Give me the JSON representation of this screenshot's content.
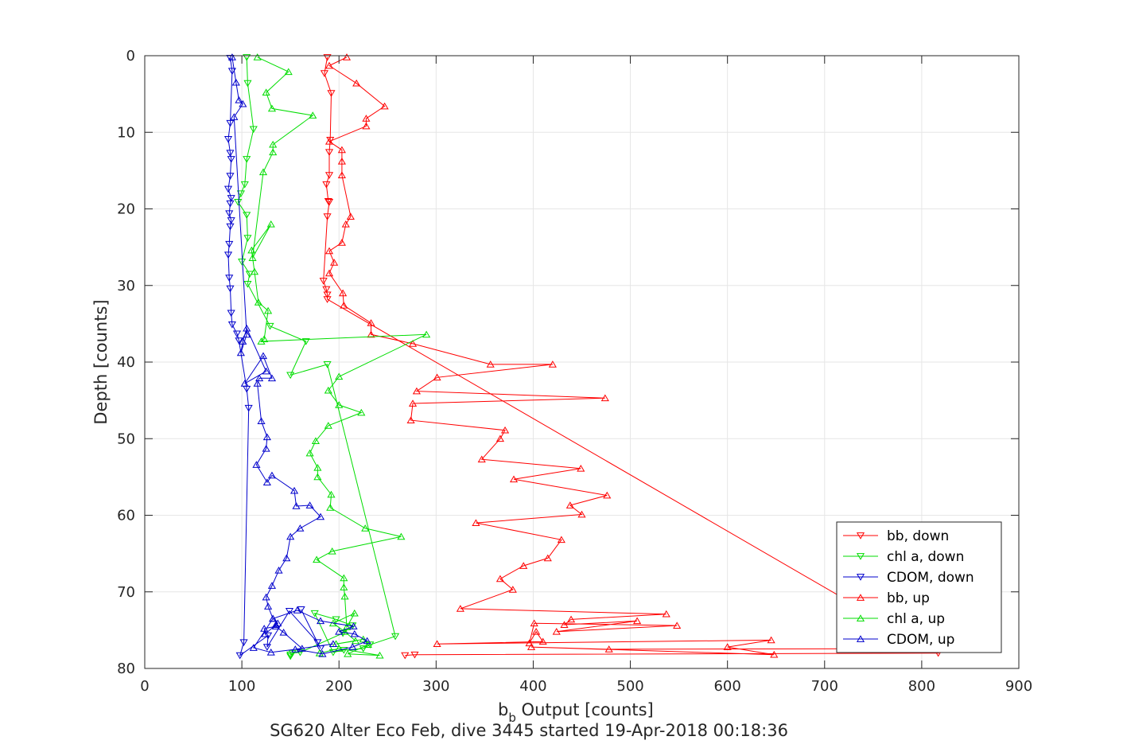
{
  "chart_data": {
    "type": "line",
    "xlabel_main": "b",
    "xlabel_sub": "b",
    "xlabel_rest": " Output [counts]",
    "ylabel": "Depth [counts]",
    "caption": "SG620 Alter Eco Feb, dive 3445 started 19-Apr-2018 00:18:36",
    "xlim": [
      0,
      900
    ],
    "ylim": [
      0,
      80
    ],
    "y_reversed": true,
    "grid": true,
    "legend_position": "bottom-right",
    "xticks": [
      "0",
      "100",
      "200",
      "300",
      "400",
      "500",
      "600",
      "700",
      "800",
      "900"
    ],
    "yticks": [
      "0",
      "10",
      "20",
      "30",
      "40",
      "50",
      "60",
      "70",
      "80"
    ],
    "series": [
      {
        "name": "bb, down",
        "color": "#ff0000",
        "marker": "triangle-down",
        "x": [
          188,
          185,
          192,
          191,
          190,
          190,
          187,
          189,
          190,
          188,
          184,
          187,
          188,
          188,
          817,
          278,
          268
        ],
        "y": [
          0.2,
          2.3,
          4.9,
          11.0,
          12.6,
          15.6,
          16.8,
          19.0,
          19.1,
          21.0,
          29.4,
          30.5,
          31.2,
          31.8,
          78.0,
          78.2,
          78.3
        ]
      },
      {
        "name": "chl a, down",
        "color": "#00dd00",
        "marker": "triangle-down",
        "x": [
          105,
          106,
          112,
          105,
          103,
          99,
          96,
          105,
          106,
          100,
          108,
          106,
          129,
          166,
          150,
          188,
          258,
          232,
          225,
          205,
          194,
          175,
          197,
          214,
          204,
          160,
          152,
          150,
          150
        ],
        "y": [
          0.2,
          3.6,
          9.6,
          13.5,
          16.8,
          18.0,
          19.1,
          20.8,
          23.8,
          26.9,
          28.5,
          29.8,
          35.3,
          37.3,
          41.7,
          40.3,
          75.8,
          76.9,
          77.4,
          77.6,
          77.9,
          72.8,
          73.6,
          74.4,
          75.4,
          77.9,
          78.0,
          78.2,
          78.4
        ]
      },
      {
        "name": "CDOM, down",
        "color": "#0000cc",
        "marker": "triangle-down",
        "x": [
          88,
          90,
          88,
          86,
          88,
          89,
          88,
          86,
          89,
          88,
          87,
          89,
          88,
          87,
          86,
          87,
          88,
          89,
          90,
          95,
          97,
          105,
          107,
          102,
          98,
          127,
          126,
          149,
          178,
          181,
          161
        ],
        "y": [
          0.3,
          2.0,
          8.8,
          10.9,
          12.7,
          13.5,
          15.7,
          17.4,
          18.6,
          19.3,
          20.6,
          21.5,
          22.3,
          24.6,
          26.0,
          29.0,
          30.4,
          33.6,
          35.1,
          36.3,
          37.2,
          43.5,
          46.0,
          76.6,
          78.3,
          75.7,
          77.2,
          72.5,
          76.6,
          77.4,
          72.3
        ]
      },
      {
        "name": "bb, up",
        "color": "#ff0000",
        "marker": "triangle-up",
        "x": [
          208,
          190,
          218,
          247,
          228,
          228,
          190,
          203,
          203,
          203,
          212,
          207,
          203,
          190,
          195,
          190,
          204,
          205,
          233,
          233,
          276,
          356,
          420,
          301,
          280,
          474,
          276,
          274,
          371,
          366,
          347,
          449,
          380,
          476,
          438,
          450,
          341,
          429,
          415,
          390,
          366,
          379,
          325,
          537,
          439,
          432,
          507,
          424,
          548,
          401,
          396,
          403,
          410,
          301,
          645,
          600,
          648,
          398,
          478,
          819
        ],
        "y": [
          0.2,
          1.3,
          3.6,
          6.6,
          8.2,
          9.2,
          11.2,
          12.3,
          13.8,
          15.6,
          21.0,
          22.0,
          24.4,
          25.5,
          27.0,
          28.4,
          31.0,
          32.6,
          34.9,
          36.4,
          37.6,
          40.3,
          40.3,
          42.0,
          43.8,
          44.7,
          45.4,
          47.6,
          48.9,
          50.0,
          52.7,
          53.9,
          55.3,
          57.4,
          58.7,
          59.9,
          61.0,
          63.2,
          65.6,
          66.6,
          68.3,
          69.7,
          72.2,
          72.9,
          73.6,
          74.3,
          73.8,
          75.2,
          74.4,
          74.1,
          76.7,
          75.2,
          76.5,
          76.8,
          76.3,
          77.2,
          78.2,
          77.2,
          77.5,
          77.4
        ]
      },
      {
        "name": "chl a, up",
        "color": "#00dd00",
        "marker": "triangle-up",
        "x": [
          116,
          148,
          125,
          131,
          173,
          132,
          132,
          122,
          111,
          130,
          110,
          113,
          117,
          127,
          123,
          120,
          290,
          200,
          189,
          200,
          223,
          189,
          176,
          170,
          178,
          178,
          192,
          191,
          227,
          264,
          193,
          177,
          205,
          205,
          206,
          208,
          216,
          194,
          206,
          217,
          197,
          225,
          230,
          209,
          242,
          200,
          180
        ],
        "y": [
          0.2,
          2.1,
          4.8,
          6.9,
          7.8,
          11.6,
          12.6,
          15.2,
          26.4,
          22.0,
          25.4,
          28.2,
          32.2,
          33.3,
          37.0,
          37.3,
          36.4,
          41.9,
          43.7,
          45.6,
          46.6,
          48.3,
          50.3,
          51.9,
          53.8,
          55.0,
          57.3,
          59.0,
          61.7,
          62.8,
          64.7,
          65.8,
          68.2,
          69.4,
          70.6,
          74.6,
          72.8,
          74.1,
          75.2,
          76.4,
          76.8,
          76.2,
          76.9,
          78.1,
          78.3,
          77.4,
          78.0
        ]
      },
      {
        "name": "CDOM, up",
        "color": "#0000cc",
        "marker": "triangle-up",
        "x": [
          90,
          94,
          97,
          101,
          92,
          105,
          99,
          101,
          105,
          125,
          103,
          122,
          131,
          118,
          116,
          120,
          126,
          125,
          115,
          126,
          131,
          154,
          156,
          170,
          181,
          160,
          150,
          146,
          138,
          131,
          125,
          127,
          132,
          137,
          135,
          124,
          123,
          135,
          143,
          162,
          130,
          112,
          132,
          157,
          181,
          215,
          200,
          216,
          229,
          214,
          183,
          155,
          194
        ],
        "y": [
          0.2,
          3.5,
          5.8,
          6.3,
          8.0,
          36.4,
          38.8,
          37.3,
          35.6,
          41.2,
          42.8,
          39.2,
          42.1,
          42.1,
          42.8,
          47.7,
          49.8,
          51.3,
          53.4,
          55.7,
          54.8,
          56.8,
          58.8,
          58.7,
          60.2,
          61.7,
          62.8,
          65.6,
          67.2,
          69.2,
          70.7,
          71.9,
          73.5,
          74.1,
          74.3,
          75.5,
          74.8,
          74.5,
          75.3,
          77.4,
          77.9,
          77.3,
          73.5,
          72.4,
          73.8,
          74.5,
          75.2,
          75.5,
          76.4,
          77.2,
          78.1,
          77.5,
          76.8
        ]
      }
    ]
  }
}
